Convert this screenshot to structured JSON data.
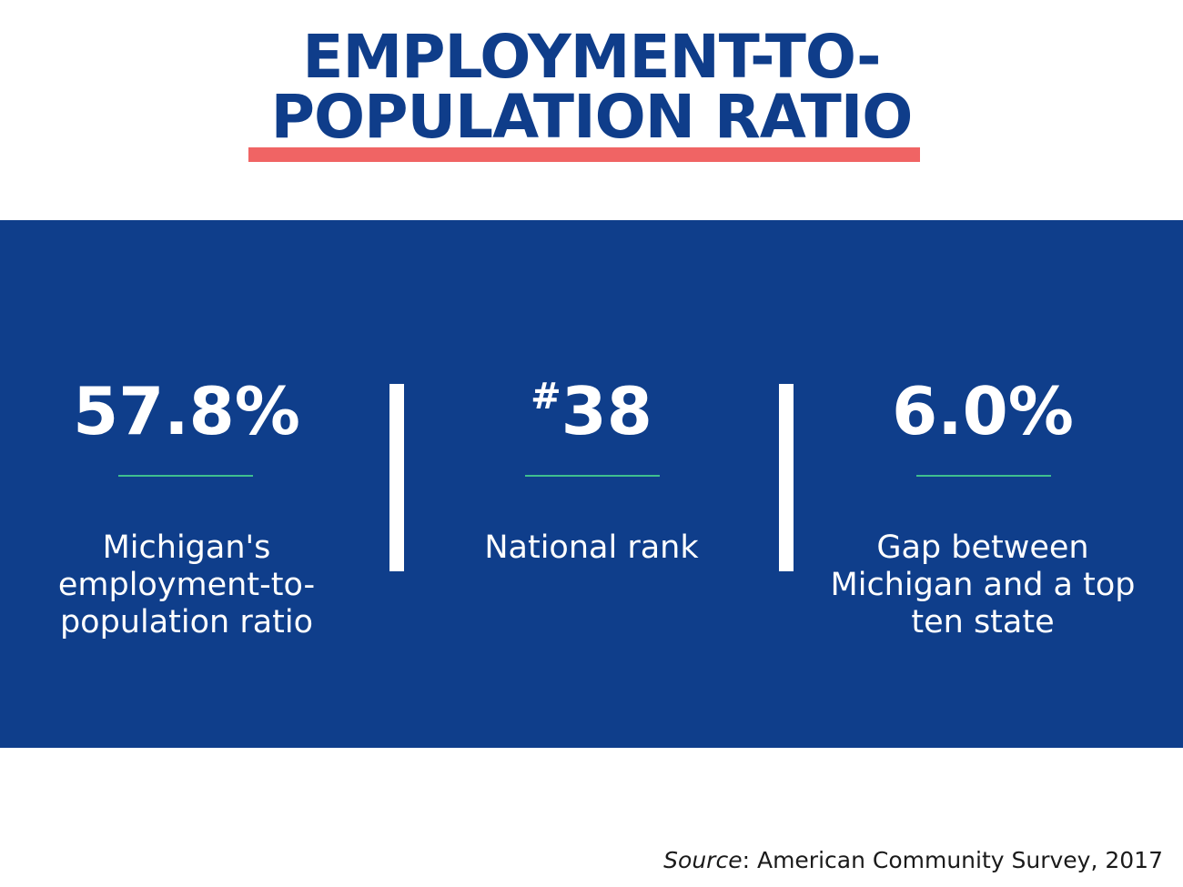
{
  "title": {
    "line1": "EMPLOYMENT-TO-",
    "line2": "POPULATION RATIO"
  },
  "colors": {
    "title": "#0f3d8a",
    "underline": "#f06464",
    "panel": "#0f3e8b",
    "rule": "#3fbf8f"
  },
  "stats": [
    {
      "value": "57.8%",
      "description": "Michigan's employment-to-population ratio"
    },
    {
      "value_prefix": "#",
      "value": "38",
      "description": "National rank"
    },
    {
      "value": "6.0%",
      "description": "Gap between Michigan and a top ten state"
    }
  ],
  "source": {
    "label": "Source",
    "text": ": American Community Survey, 2017"
  }
}
